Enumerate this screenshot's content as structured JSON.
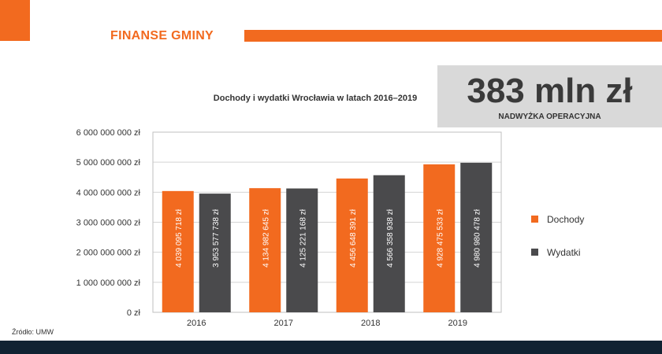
{
  "header": {
    "section_title": "FINANSE GMINY"
  },
  "kpi": {
    "value": "383 mln zł",
    "label": "NADWYŻKA OPERACYJNA"
  },
  "chart_data": {
    "type": "bar",
    "title": "Dochody i wydatki Wrocławia w latach 2016–2019",
    "categories": [
      "2016",
      "2017",
      "2018",
      "2019"
    ],
    "series": [
      {
        "name": "Dochody",
        "color": "#f26a1f",
        "values": [
          4039095718,
          4134982645,
          4456648391,
          4928475533
        ],
        "labels": [
          "4 039 095 718 zł",
          "4 134 982 645 zł",
          "4 456 648 391 zł",
          "4 928 475 533 zł"
        ]
      },
      {
        "name": "Wydatki",
        "color": "#4a4a4c",
        "values": [
          3953577738,
          4125221168,
          4566358938,
          4980980478
        ],
        "labels": [
          "3 953 577 738 zł",
          "4 125 221 168 zł",
          "4 566 358 938 zł",
          "4 980 980 478 zł"
        ]
      }
    ],
    "ylim": [
      0,
      6000000000
    ],
    "yticks": [
      {
        "value": 0,
        "label": "0 zł"
      },
      {
        "value": 1000000000,
        "label": "1 000 000 000 zł"
      },
      {
        "value": 2000000000,
        "label": "2 000 000 000 zł"
      },
      {
        "value": 3000000000,
        "label": "3 000 000 000 zł"
      },
      {
        "value": 4000000000,
        "label": "4 000 000 000 zł"
      },
      {
        "value": 5000000000,
        "label": "5 000 000 000 zł"
      },
      {
        "value": 6000000000,
        "label": "6 000 000 000 zł"
      }
    ],
    "grid": true,
    "legend_position": "right"
  },
  "source": "Źródło: UMW"
}
